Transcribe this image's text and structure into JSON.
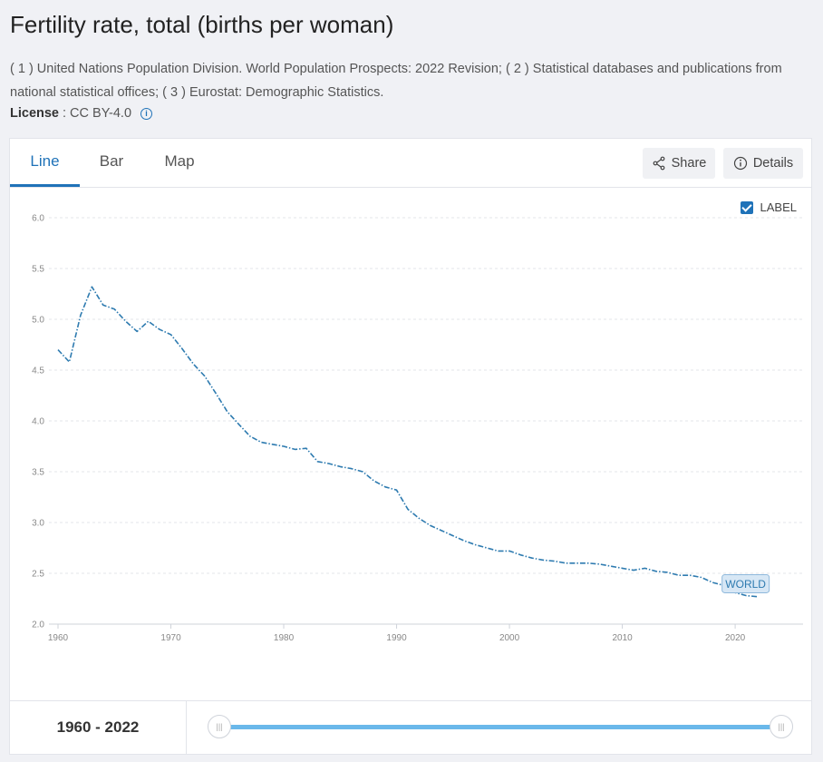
{
  "header": {
    "title": "Fertility rate, total (births per woman)",
    "sources": "( 1 ) United Nations Population Division. World Population Prospects: 2022 Revision; ( 2 ) Statistical databases and publications from national statistical offices; ( 3 ) Eurostat: Demographic Statistics.",
    "license_label": "License",
    "license_value": ": CC BY-4.0",
    "license_icon": "info-icon"
  },
  "tabs": [
    {
      "label": "Line",
      "active": true
    },
    {
      "label": "Bar",
      "active": false
    },
    {
      "label": "Map",
      "active": false
    }
  ],
  "toolbar": {
    "share_label": "Share",
    "share_icon": "share-icon",
    "details_label": "Details",
    "details_icon": "info-icon"
  },
  "label_toggle": {
    "label": "LABEL",
    "checked": true
  },
  "range": {
    "label": "1960 - 2022",
    "start": 1960,
    "end": 2022
  },
  "colors": {
    "accent": "#1f72b8",
    "series": "#2e7bb0",
    "track": "#6ab8ea"
  },
  "chart_data": {
    "type": "line",
    "title": "Fertility rate, total (births per woman)",
    "xlabel": "",
    "ylabel": "",
    "xlim": [
      1960,
      2022
    ],
    "ylim": [
      2.0,
      6.0
    ],
    "x_ticks": [
      1960,
      1970,
      1980,
      1990,
      2000,
      2010,
      2020
    ],
    "y_ticks": [
      2.0,
      2.5,
      3.0,
      3.5,
      4.0,
      4.5,
      5.0,
      5.5,
      6.0
    ],
    "grid": true,
    "series": [
      {
        "name": "WORLD",
        "x": [
          1960,
          1961,
          1962,
          1963,
          1964,
          1965,
          1966,
          1967,
          1968,
          1969,
          1970,
          1971,
          1972,
          1973,
          1974,
          1975,
          1976,
          1977,
          1978,
          1979,
          1980,
          1981,
          1982,
          1983,
          1984,
          1985,
          1986,
          1987,
          1988,
          1989,
          1990,
          1991,
          1992,
          1993,
          1994,
          1995,
          1996,
          1997,
          1998,
          1999,
          2000,
          2001,
          2002,
          2003,
          2004,
          2005,
          2006,
          2007,
          2008,
          2009,
          2010,
          2011,
          2012,
          2013,
          2014,
          2015,
          2016,
          2017,
          2018,
          2019,
          2020,
          2021,
          2022
        ],
        "values": [
          4.7,
          4.58,
          5.04,
          5.32,
          5.14,
          5.1,
          4.98,
          4.88,
          4.98,
          4.9,
          4.85,
          4.71,
          4.56,
          4.44,
          4.27,
          4.09,
          3.97,
          3.85,
          3.79,
          3.77,
          3.75,
          3.72,
          3.73,
          3.6,
          3.58,
          3.55,
          3.53,
          3.5,
          3.41,
          3.35,
          3.32,
          3.13,
          3.04,
          2.97,
          2.92,
          2.87,
          2.82,
          2.78,
          2.75,
          2.72,
          2.72,
          2.68,
          2.65,
          2.63,
          2.62,
          2.6,
          2.6,
          2.6,
          2.59,
          2.57,
          2.55,
          2.53,
          2.55,
          2.52,
          2.51,
          2.48,
          2.48,
          2.46,
          2.41,
          2.38,
          2.31,
          2.28,
          2.27
        ]
      }
    ]
  }
}
